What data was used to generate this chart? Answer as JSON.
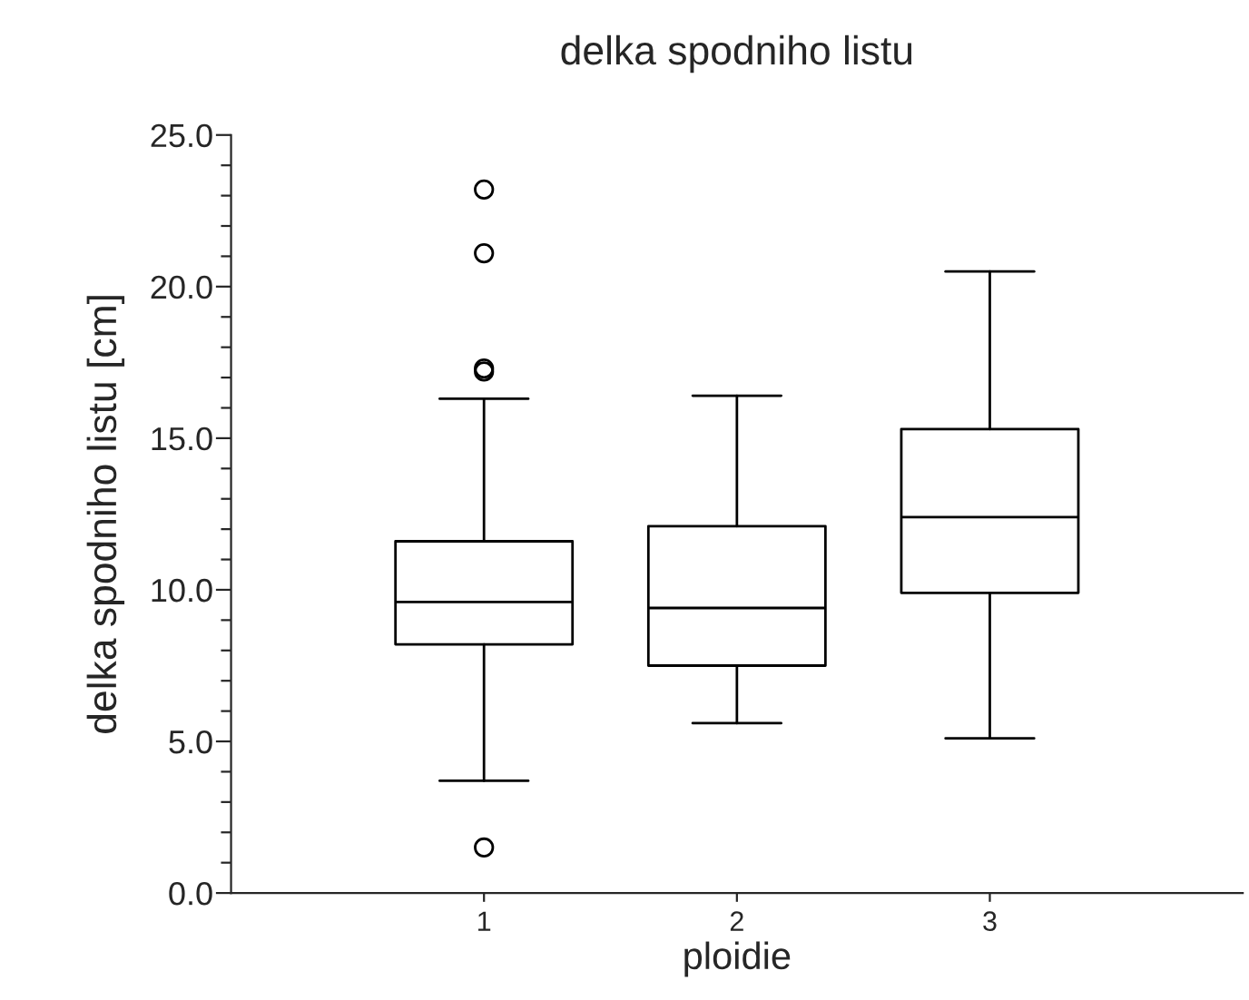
{
  "chart_data": {
    "type": "box",
    "title": "delka spodniho listu",
    "xlabel": "ploidie",
    "ylabel": "delka spodniho listu [cm]",
    "categories": [
      "1",
      "2",
      "3"
    ],
    "boxes": [
      {
        "low": 3.7,
        "q1": 8.2,
        "median": 9.6,
        "q3": 11.6,
        "high": 16.3,
        "outliers": [
          23.2,
          21.1,
          17.3,
          17.2,
          1.5
        ]
      },
      {
        "low": 5.6,
        "q1": 7.5,
        "median": 9.4,
        "q3": 12.1,
        "high": 16.4
      },
      {
        "low": 5.1,
        "q1": 9.9,
        "median": 12.4,
        "q3": 15.3,
        "high": 20.5
      }
    ],
    "ylim": [
      0,
      25
    ],
    "yticks": [
      {
        "value": 0,
        "label": "0.0"
      },
      {
        "value": 1,
        "label": null
      },
      {
        "value": 2,
        "label": null
      },
      {
        "value": 3,
        "label": null
      },
      {
        "value": 4,
        "label": null
      },
      {
        "value": 5,
        "label": "5.0"
      },
      {
        "value": 6,
        "label": null
      },
      {
        "value": 7,
        "label": null
      },
      {
        "value": 8,
        "label": null
      },
      {
        "value": 9,
        "label": null
      },
      {
        "value": 10,
        "label": "10.0"
      },
      {
        "value": 11,
        "label": null
      },
      {
        "value": 12,
        "label": null
      },
      {
        "value": 13,
        "label": null
      },
      {
        "value": 14,
        "label": null
      },
      {
        "value": 15,
        "label": "15.0"
      },
      {
        "value": 16,
        "label": null
      },
      {
        "value": 17,
        "label": null
      },
      {
        "value": 18,
        "label": null
      },
      {
        "value": 19,
        "label": null
      },
      {
        "value": 20,
        "label": "20.0"
      },
      {
        "value": 21,
        "label": null
      },
      {
        "value": 22,
        "label": null
      },
      {
        "value": 23,
        "label": null
      },
      {
        "value": 24,
        "label": null
      },
      {
        "value": 25,
        "label": "25.0"
      }
    ],
    "grid": false
  }
}
